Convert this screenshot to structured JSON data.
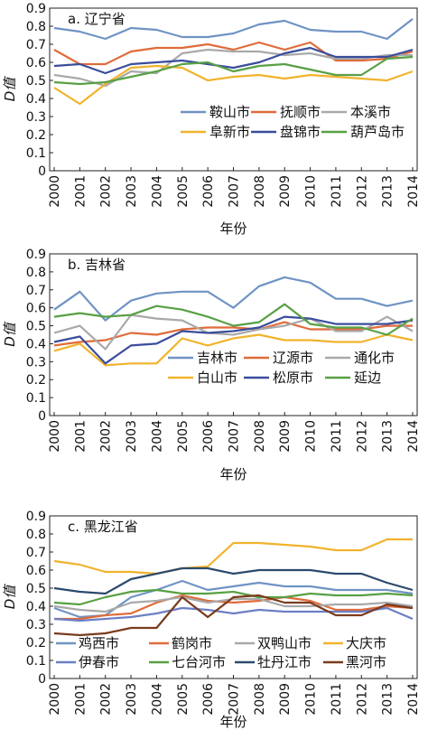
{
  "colors": {
    "blue": "#6f93c4",
    "orange": "#e06b3a",
    "gray": "#a9a9a9",
    "yellow": "#f1b32c",
    "navy": "#3a4d9c",
    "green": "#58a044",
    "darkblue": "#2c4a6e",
    "brown": "#7a3b1e"
  },
  "chart_data": [
    {
      "type": "line",
      "title": "a. 辽宁省",
      "xlabel": "年份",
      "ylabel": "D值",
      "ylim": [
        0,
        0.9
      ],
      "yticks": [
        "0",
        "0.1",
        "0.2",
        "0.3",
        "0.4",
        "0.5",
        "0.6",
        "0.7",
        "0.8",
        "0.9"
      ],
      "x": [
        "2000",
        "2001",
        "2002",
        "2003",
        "2004",
        "2005",
        "2006",
        "2007",
        "2008",
        "2009",
        "2010",
        "2011",
        "2012",
        "2013",
        "2014"
      ],
      "legend_position": "lower-center",
      "series": [
        {
          "name": "鞍山市",
          "color": "#6f93c4",
          "values": [
            0.79,
            0.77,
            0.73,
            0.79,
            0.78,
            0.74,
            0.74,
            0.76,
            0.81,
            0.83,
            0.78,
            0.77,
            0.77,
            0.73,
            0.84
          ]
        },
        {
          "name": "抚顺市",
          "color": "#e06b3a",
          "values": [
            0.67,
            0.59,
            0.59,
            0.66,
            0.68,
            0.68,
            0.7,
            0.67,
            0.71,
            0.67,
            0.71,
            0.61,
            0.61,
            0.62,
            0.66
          ]
        },
        {
          "name": "本溪市",
          "color": "#a9a9a9",
          "values": [
            0.53,
            0.51,
            0.47,
            0.55,
            0.54,
            0.65,
            0.67,
            0.66,
            0.66,
            0.64,
            0.65,
            0.62,
            0.62,
            0.64,
            0.64
          ]
        },
        {
          "name": "阜新市",
          "color": "#f1b32c",
          "values": [
            0.46,
            0.37,
            0.48,
            0.57,
            0.58,
            0.57,
            0.5,
            0.52,
            0.53,
            0.51,
            0.53,
            0.52,
            0.51,
            0.5,
            0.55
          ]
        },
        {
          "name": "盘锦市",
          "color": "#3a4d9c",
          "values": [
            0.58,
            0.59,
            0.54,
            0.59,
            0.6,
            0.61,
            0.59,
            0.57,
            0.6,
            0.65,
            0.68,
            0.63,
            0.63,
            0.63,
            0.67
          ]
        },
        {
          "name": "葫芦岛市",
          "color": "#58a044",
          "values": [
            0.49,
            0.48,
            0.49,
            0.52,
            0.55,
            0.59,
            0.6,
            0.55,
            0.58,
            0.59,
            0.56,
            0.53,
            0.53,
            0.62,
            0.63
          ]
        }
      ]
    },
    {
      "type": "line",
      "title": "b. 吉林省",
      "xlabel": "年份",
      "ylabel": "D值",
      "ylim": [
        0,
        0.9
      ],
      "yticks": [
        "0",
        "0.1",
        "0.2",
        "0.3",
        "0.4",
        "0.5",
        "0.6",
        "0.7",
        "0.8",
        "0.9"
      ],
      "x": [
        "2000",
        "2001",
        "2002",
        "2003",
        "2004",
        "2005",
        "2006",
        "2007",
        "2008",
        "2009",
        "2010",
        "2011",
        "2012",
        "2013",
        "2014"
      ],
      "legend_position": "lower-center",
      "series": [
        {
          "name": "吉林市",
          "color": "#6f93c4",
          "values": [
            0.59,
            0.69,
            0.53,
            0.64,
            0.68,
            0.69,
            0.69,
            0.6,
            0.72,
            0.77,
            0.74,
            0.65,
            0.65,
            0.61,
            0.64
          ]
        },
        {
          "name": "辽源市",
          "color": "#e06b3a",
          "values": [
            0.39,
            0.41,
            0.42,
            0.46,
            0.45,
            0.48,
            0.49,
            0.49,
            0.48,
            0.52,
            0.48,
            0.48,
            0.48,
            0.5,
            0.5
          ]
        },
        {
          "name": "通化市",
          "color": "#a9a9a9",
          "values": [
            0.46,
            0.5,
            0.37,
            0.56,
            0.54,
            0.53,
            0.46,
            0.45,
            0.48,
            0.5,
            0.54,
            0.47,
            0.47,
            0.55,
            0.47
          ]
        },
        {
          "name": "白山市",
          "color": "#f1b32c",
          "values": [
            0.36,
            0.4,
            0.28,
            0.29,
            0.29,
            0.43,
            0.39,
            0.43,
            0.45,
            0.42,
            0.42,
            0.41,
            0.41,
            0.45,
            0.42
          ]
        },
        {
          "name": "松原市",
          "color": "#3a4d9c",
          "values": [
            0.41,
            0.44,
            0.29,
            0.39,
            0.4,
            0.47,
            0.46,
            0.47,
            0.49,
            0.55,
            0.54,
            0.51,
            0.51,
            0.51,
            0.53
          ]
        },
        {
          "name": "延边",
          "color": "#58a044",
          "values": [
            0.55,
            0.57,
            0.55,
            0.56,
            0.61,
            0.59,
            0.55,
            0.5,
            0.52,
            0.62,
            0.51,
            0.49,
            0.49,
            0.45,
            0.54
          ]
        }
      ]
    },
    {
      "type": "line",
      "title": "c. 黑龙江省",
      "xlabel": "年份",
      "ylabel": "D值",
      "ylim": [
        0,
        0.9
      ],
      "yticks": [
        "0",
        "0.1",
        "0.2",
        "0.3",
        "0.4",
        "0.5",
        "0.6",
        "0.7",
        "0.8",
        "0.9"
      ],
      "x": [
        "2000",
        "2001",
        "2002",
        "2003",
        "2004",
        "2005",
        "2006",
        "2007",
        "2008",
        "2009",
        "2010",
        "2011",
        "2012",
        "2013",
        "2014"
      ],
      "legend_position": "lower-center",
      "series": [
        {
          "name": "鸡西市",
          "color": "#6f93c4",
          "values": [
            0.39,
            0.34,
            0.35,
            0.45,
            0.49,
            0.54,
            0.49,
            0.51,
            0.53,
            0.51,
            0.51,
            0.49,
            0.49,
            0.49,
            0.47
          ]
        },
        {
          "name": "鹤岗市",
          "color": "#e06b3a",
          "values": [
            0.33,
            0.33,
            0.35,
            0.36,
            0.42,
            0.46,
            0.43,
            0.42,
            0.43,
            0.45,
            0.43,
            0.38,
            0.38,
            0.4,
            0.39
          ]
        },
        {
          "name": "双鸭山市",
          "color": "#a9a9a9",
          "values": [
            0.4,
            0.38,
            0.37,
            0.42,
            0.43,
            0.45,
            0.42,
            0.44,
            0.44,
            0.4,
            0.4,
            0.41,
            0.41,
            0.42,
            0.4
          ]
        },
        {
          "name": "大庆市",
          "color": "#f1b32c",
          "values": [
            0.65,
            0.63,
            0.59,
            0.59,
            0.58,
            0.61,
            0.62,
            0.75,
            0.75,
            0.74,
            0.73,
            0.71,
            0.71,
            0.77,
            0.77
          ]
        },
        {
          "name": "伊春市",
          "color": "#6b7fc4",
          "values": [
            0.33,
            0.32,
            0.33,
            0.34,
            0.36,
            0.39,
            0.38,
            0.36,
            0.38,
            0.37,
            0.37,
            0.37,
            0.37,
            0.39,
            0.33
          ]
        },
        {
          "name": "七台河市",
          "color": "#58a044",
          "values": [
            0.42,
            0.41,
            0.45,
            0.48,
            0.49,
            0.47,
            0.47,
            0.48,
            0.45,
            0.45,
            0.47,
            0.46,
            0.46,
            0.47,
            0.46
          ]
        },
        {
          "name": "牡丹江市",
          "color": "#2c4a6e",
          "values": [
            0.5,
            0.48,
            0.47,
            0.55,
            0.58,
            0.61,
            0.61,
            0.58,
            0.6,
            0.6,
            0.6,
            0.58,
            0.58,
            0.53,
            0.49
          ]
        },
        {
          "name": "黑河市",
          "color": "#7a3b1e",
          "values": [
            0.25,
            0.24,
            0.25,
            0.28,
            0.28,
            0.45,
            0.34,
            0.45,
            0.46,
            0.42,
            0.42,
            0.35,
            0.35,
            0.41,
            0.39
          ]
        }
      ]
    }
  ]
}
